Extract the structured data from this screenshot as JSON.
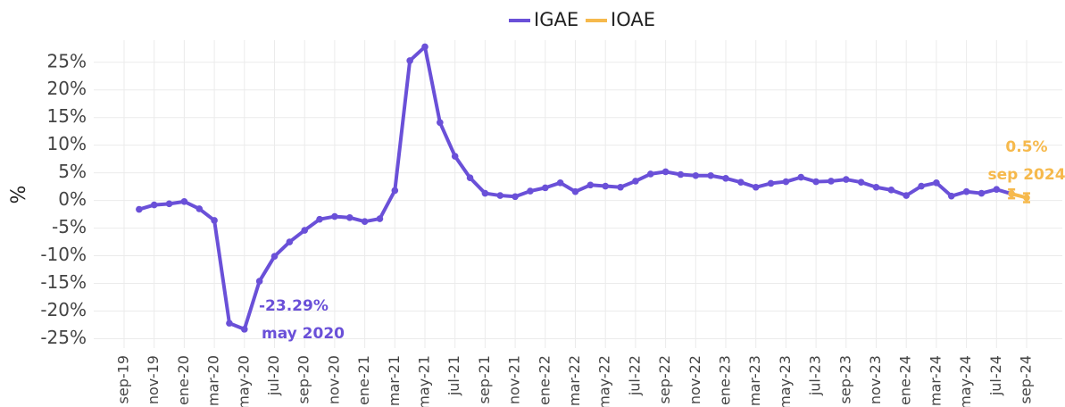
{
  "chart_data": {
    "type": "line",
    "categories": [
      "sep-19",
      null,
      "nov-19",
      null,
      "ene-20",
      null,
      "mar-20",
      null,
      "may-20",
      null,
      "jul-20",
      null,
      "sep-20",
      null,
      "nov-20",
      null,
      "ene-21",
      null,
      "mar-21",
      null,
      "may-21",
      null,
      "jul-21",
      null,
      "sep-21",
      null,
      "nov-21",
      null,
      "ene-22",
      null,
      "mar-22",
      null,
      "may-22",
      null,
      "jul-22",
      null,
      "sep-22",
      null,
      "nov-22",
      null,
      "ene-23",
      null,
      "mar-23",
      null,
      "may-23",
      null,
      "jul-23",
      null,
      "sep-23",
      null,
      "nov-23",
      null,
      "ene-24",
      null,
      "mar-24",
      null,
      "may-24",
      null,
      "jul-24",
      null,
      "sep-24"
    ],
    "series": [
      {
        "name": "IGAE",
        "color": "#6a50d8",
        "values": [
          null,
          -1.6,
          -0.8,
          -0.6,
          -0.2,
          -1.5,
          -3.6,
          -22.2,
          -23.29,
          -14.6,
          -10.1,
          -7.5,
          -5.4,
          -3.4,
          -2.9,
          -3.1,
          -3.8,
          -3.3,
          1.8,
          25.3,
          27.8,
          14.1,
          8.0,
          4.1,
          1.3,
          0.9,
          0.7,
          1.7,
          2.3,
          3.2,
          1.6,
          2.8,
          2.6,
          2.4,
          3.5,
          4.8,
          5.2,
          4.7,
          4.5,
          4.5,
          4.0,
          3.3,
          2.4,
          3.1,
          3.4,
          4.2,
          3.4,
          3.5,
          3.8,
          3.3,
          2.4,
          1.9,
          0.9,
          2.6,
          3.2,
          0.8,
          1.6,
          1.3,
          2.0,
          1.2,
          null
        ]
      },
      {
        "name": "IOAE",
        "color": "#f6b94c",
        "values": [
          null,
          null,
          null,
          null,
          null,
          null,
          null,
          null,
          null,
          null,
          null,
          null,
          null,
          null,
          null,
          null,
          null,
          null,
          null,
          null,
          null,
          null,
          null,
          null,
          null,
          null,
          null,
          null,
          null,
          null,
          null,
          null,
          null,
          null,
          null,
          null,
          null,
          null,
          null,
          null,
          null,
          null,
          null,
          null,
          null,
          null,
          null,
          null,
          null,
          null,
          null,
          null,
          null,
          null,
          null,
          null,
          null,
          null,
          null,
          1.2,
          0.5
        ],
        "errors": [
          null,
          null,
          null,
          null,
          null,
          null,
          null,
          null,
          null,
          null,
          null,
          null,
          null,
          null,
          null,
          null,
          null,
          null,
          null,
          null,
          null,
          null,
          null,
          null,
          null,
          null,
          null,
          null,
          null,
          null,
          null,
          null,
          null,
          null,
          null,
          null,
          null,
          null,
          null,
          null,
          null,
          null,
          null,
          null,
          null,
          null,
          null,
          null,
          null,
          null,
          null,
          null,
          null,
          null,
          null,
          null,
          null,
          null,
          null,
          0.8,
          0.8
        ]
      }
    ],
    "y_label": "%",
    "ylim": [
      -26.7,
      29
    ],
    "yticks": [
      {
        "value": -25,
        "label": "-25%"
      },
      {
        "value": -20,
        "label": "-20%"
      },
      {
        "value": -15,
        "label": "-15%"
      },
      {
        "value": -10,
        "label": "-10%"
      },
      {
        "value": -5,
        "label": "-5%"
      },
      {
        "value": 0,
        "label": "0%"
      },
      {
        "value": 5,
        "label": "5%"
      },
      {
        "value": 10,
        "label": "10%"
      },
      {
        "value": 15,
        "label": "15%"
      },
      {
        "value": 20,
        "label": "20%"
      },
      {
        "value": 25,
        "label": "25%"
      }
    ],
    "grid": true,
    "legend": "top",
    "annotations": [
      {
        "text": "-23.29%",
        "subtext": "may 2020"
      },
      {
        "text": "0.5%",
        "subtext": "sep 2024"
      }
    ]
  }
}
